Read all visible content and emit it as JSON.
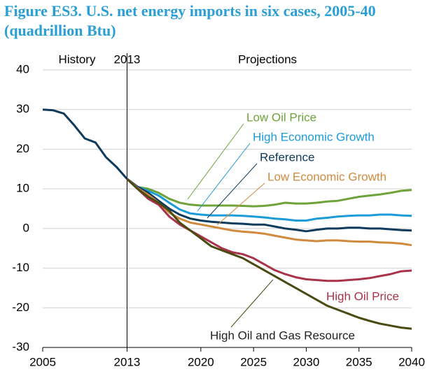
{
  "chart_data": {
    "type": "line",
    "title": "Figure ES3. U.S. net energy imports in six cases, 2005-40 (quadrillion Btu)",
    "annotations": [
      "History",
      "2013",
      "Projections"
    ],
    "x": [
      2005,
      2006,
      2007,
      2008,
      2009,
      2010,
      2011,
      2012,
      2013,
      2014,
      2015,
      2016,
      2017,
      2018,
      2019,
      2020,
      2021,
      2022,
      2023,
      2024,
      2025,
      2026,
      2027,
      2028,
      2029,
      2030,
      2031,
      2032,
      2033,
      2034,
      2035,
      2036,
      2037,
      2038,
      2039,
      2040
    ],
    "xlim": [
      2005,
      2040
    ],
    "xticks": [
      2005,
      2013,
      2020,
      2025,
      2030,
      2035,
      2040
    ],
    "ylim": [
      -30,
      40
    ],
    "yticks": [
      -30,
      -20,
      -10,
      0,
      10,
      20,
      30,
      40
    ],
    "grid": true,
    "series": [
      {
        "name": "Low Oil Price",
        "color": "#6ea33a",
        "values": [
          null,
          null,
          null,
          null,
          null,
          null,
          null,
          null,
          12.5,
          10.5,
          10,
          9,
          7.5,
          6.5,
          6,
          5.8,
          5.8,
          5.8,
          5.8,
          5.7,
          5.6,
          5.7,
          6,
          6.5,
          6.3,
          6.3,
          6.5,
          6.8,
          7,
          7.5,
          8,
          8.3,
          8.6,
          9,
          9.5,
          9.7
        ]
      },
      {
        "name": "High Economic Growth",
        "color": "#1b9bd7",
        "values": [
          null,
          null,
          null,
          null,
          null,
          null,
          null,
          null,
          12.5,
          10.5,
          9.5,
          8.3,
          6.5,
          4.8,
          3.8,
          3.5,
          3.3,
          3.3,
          3.3,
          3.2,
          3,
          2.8,
          2.5,
          2.3,
          2,
          2,
          2.5,
          2.7,
          3,
          3.2,
          3.3,
          3.3,
          3.5,
          3.5,
          3.3,
          3.2
        ]
      },
      {
        "name": "Reference",
        "color": "#0e3a5c",
        "values": [
          30,
          29.8,
          29,
          26,
          22.7,
          21.7,
          18,
          15.5,
          12.5,
          10.5,
          9,
          7,
          5,
          3.5,
          2.5,
          2,
          1.7,
          1.5,
          1.3,
          1.2,
          1,
          1,
          0.5,
          0,
          -0.3,
          -0.7,
          -0.3,
          0,
          0,
          0.2,
          0.2,
          0,
          0,
          -0.2,
          -0.4,
          -0.5
        ]
      },
      {
        "name": "Low Economic Growth",
        "color": "#d08a3e",
        "values": [
          null,
          null,
          null,
          null,
          null,
          null,
          null,
          null,
          12.5,
          10.2,
          8.5,
          6.5,
          4,
          2.5,
          1.5,
          1,
          0.5,
          0,
          -0.5,
          -0.8,
          -1,
          -1.3,
          -1.8,
          -2.3,
          -2.8,
          -3,
          -3.2,
          -3,
          -3,
          -3.2,
          -3.3,
          -3.3,
          -3.5,
          -3.6,
          -3.8,
          -4.2
        ]
      },
      {
        "name": "High Oil Price",
        "color": "#a8334a",
        "values": [
          null,
          null,
          null,
          null,
          null,
          null,
          null,
          null,
          12.5,
          10,
          7.5,
          6,
          3,
          1,
          -0.5,
          -2,
          -3.5,
          -5,
          -6,
          -6.5,
          -7.5,
          -9,
          -10.5,
          -11.5,
          -12.3,
          -12.8,
          -13,
          -13.2,
          -13.2,
          -13,
          -12.8,
          -12.5,
          -12,
          -11.5,
          -10.8,
          -10.6
        ]
      },
      {
        "name": "High Oil and Gas Resource",
        "color": "#4a4a12",
        "values": [
          null,
          null,
          null,
          null,
          null,
          null,
          null,
          null,
          12.5,
          10,
          8,
          6.5,
          4.5,
          1.5,
          -0.5,
          -2.5,
          -4.5,
          -5.5,
          -6.5,
          -7.5,
          -9,
          -10.5,
          -12,
          -13.5,
          -15,
          -16.5,
          -18,
          -19.5,
          -20.5,
          -21.5,
          -22.5,
          -23.3,
          -24,
          -24.5,
          -25,
          -25.3
        ]
      }
    ]
  }
}
